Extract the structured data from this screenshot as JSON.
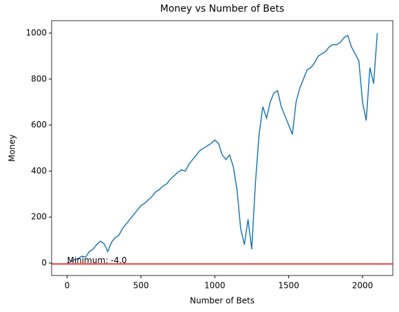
{
  "chart_data": {
    "type": "line",
    "title": "Money vs Number of Bets",
    "x_label": "Number of Bets",
    "y_label": "Money",
    "x": [
      0,
      25,
      50,
      75,
      100,
      125,
      150,
      175,
      200,
      225,
      250,
      275,
      300,
      325,
      350,
      375,
      400,
      425,
      450,
      475,
      500,
      525,
      550,
      575,
      600,
      625,
      650,
      675,
      700,
      725,
      750,
      775,
      800,
      825,
      850,
      875,
      900,
      925,
      950,
      975,
      1000,
      1025,
      1050,
      1075,
      1100,
      1125,
      1150,
      1175,
      1200,
      1225,
      1250,
      1275,
      1300,
      1325,
      1350,
      1375,
      1400,
      1425,
      1450,
      1475,
      1500,
      1525,
      1550,
      1575,
      1600,
      1625,
      1650,
      1675,
      1700,
      1725,
      1750,
      1775,
      1800,
      1825,
      1850,
      1875,
      1900,
      1925,
      1950,
      1975,
      2000,
      2025,
      2050,
      2075,
      2100
    ],
    "series": [
      {
        "name": "Money",
        "color": "#1f77b4",
        "values": [
          0,
          5,
          15,
          20,
          30,
          25,
          50,
          60,
          80,
          95,
          85,
          50,
          90,
          110,
          120,
          150,
          170,
          190,
          210,
          230,
          250,
          260,
          275,
          290,
          310,
          320,
          335,
          345,
          365,
          380,
          395,
          405,
          400,
          430,
          450,
          470,
          490,
          500,
          510,
          520,
          535,
          520,
          470,
          450,
          470,
          420,
          320,
          150,
          80,
          190,
          60,
          350,
          560,
          680,
          630,
          700,
          740,
          750,
          680,
          640,
          600,
          560,
          700,
          760,
          800,
          840,
          850,
          870,
          900,
          910,
          920,
          940,
          950,
          950,
          960,
          980,
          990,
          940,
          910,
          880,
          700,
          620,
          850,
          780,
          1000
        ]
      }
    ],
    "min_line": {
      "value": -4,
      "color": "red",
      "label": "Minimum: -4.0"
    },
    "xlim": [
      -105,
      2205
    ],
    "ylim": [
      -54,
      1054
    ],
    "xticks": [
      0,
      500,
      1000,
      1500,
      2000
    ],
    "yticks": [
      0,
      200,
      400,
      600,
      800,
      1000
    ]
  }
}
